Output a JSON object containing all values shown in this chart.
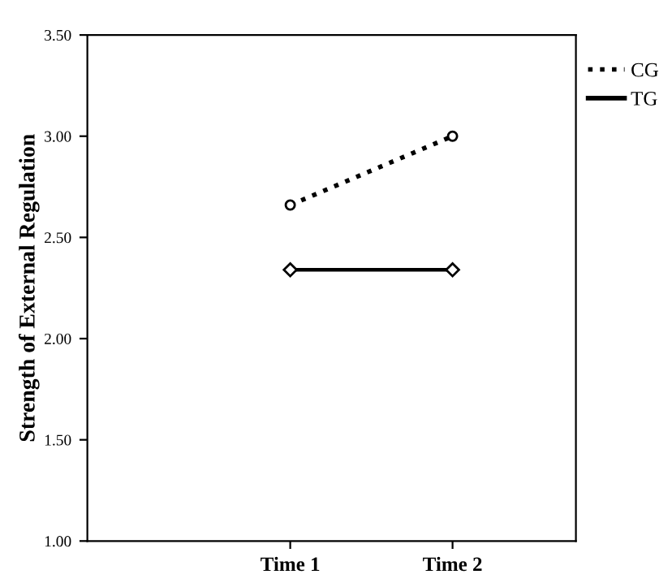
{
  "chart_data": {
    "type": "line",
    "ylabel": "Strength of External Regulation",
    "categories": [
      "Time 1",
      "Time 2"
    ],
    "series": [
      {
        "name": "CG",
        "color": "#000000",
        "values": [
          2.66,
          3.0
        ],
        "line_style": "dotted",
        "marker": "circle"
      },
      {
        "name": "TG",
        "color": "#000000",
        "values": [
          2.34,
          2.34
        ],
        "line_style": "solid",
        "marker": "diamond"
      }
    ],
    "ylim": [
      1.0,
      3.5
    ],
    "yticks": [
      {
        "value": 1.0,
        "label": "1.00"
      },
      {
        "value": 1.5,
        "label": "1.50"
      },
      {
        "value": 2.0,
        "label": "2.00"
      },
      {
        "value": 2.5,
        "label": "2.50"
      },
      {
        "value": 3.0,
        "label": "3.00"
      },
      {
        "value": 3.5,
        "label": "3.50"
      }
    ],
    "grid": false,
    "legend": "top right"
  }
}
